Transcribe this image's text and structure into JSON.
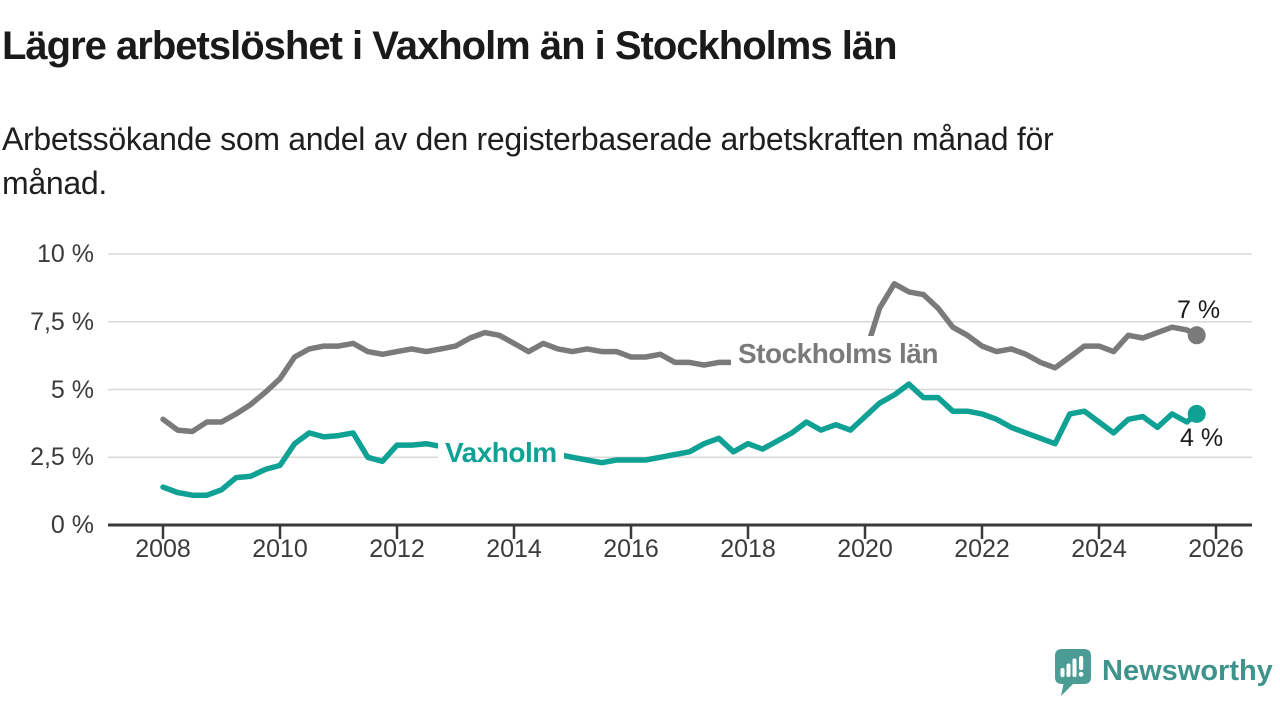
{
  "header": {
    "title": "Lägre arbetslöshet i Vaxholm än i Stockholms län",
    "subtitle_line1": "Arbetssökande som andel av den registerbaserade arbetskraften månad för",
    "subtitle_line2": "månad."
  },
  "chart_data": {
    "type": "line",
    "title": "Lägre arbetslöshet i Vaxholm än i Stockholms län",
    "subtitle": "Arbetssökande som andel av den registerbaserade arbetskraften månad för månad.",
    "xlabel": "",
    "ylabel": "",
    "grid": true,
    "xlim": [
      2007.1,
      2026.6
    ],
    "ylim": [
      0,
      10
    ],
    "x_ticks": [
      2008,
      2010,
      2012,
      2014,
      2016,
      2018,
      2020,
      2022,
      2024,
      2026
    ],
    "y_ticks": [
      {
        "value": 0,
        "label": "0 %"
      },
      {
        "value": 2.5,
        "label": "2,5 %"
      },
      {
        "value": 5,
        "label": "5 %"
      },
      {
        "value": 7.5,
        "label": "7,5 %"
      },
      {
        "value": 10,
        "label": "10 %"
      }
    ],
    "x": [
      2008,
      2008.25,
      2008.5,
      2008.75,
      2009,
      2009.25,
      2009.5,
      2009.75,
      2010,
      2010.25,
      2010.5,
      2010.75,
      2011,
      2011.25,
      2011.5,
      2011.75,
      2012,
      2012.25,
      2012.5,
      2012.75,
      2013,
      2013.25,
      2013.5,
      2013.75,
      2014,
      2014.25,
      2014.5,
      2014.75,
      2015,
      2015.25,
      2015.5,
      2015.75,
      2016,
      2016.25,
      2016.5,
      2016.75,
      2017,
      2017.25,
      2017.5,
      2017.75,
      2018,
      2018.25,
      2018.5,
      2018.75,
      2019,
      2019.25,
      2019.5,
      2019.75,
      2020,
      2020.25,
      2020.5,
      2020.75,
      2021,
      2021.25,
      2021.5,
      2021.75,
      2022,
      2022.25,
      2022.5,
      2022.75,
      2023,
      2023.25,
      2023.5,
      2023.75,
      2024,
      2024.25,
      2024.5,
      2024.75,
      2025,
      2025.25,
      2025.5,
      2025.67
    ],
    "series": [
      {
        "name": "Stockholms län",
        "color": "#7a7a7a",
        "end_label": "7 %",
        "end_value": 7,
        "values": [
          3.9,
          3.5,
          3.45,
          3.8,
          3.8,
          4.1,
          4.45,
          4.9,
          5.4,
          6.2,
          6.5,
          6.6,
          6.6,
          6.7,
          6.4,
          6.3,
          6.4,
          6.5,
          6.4,
          6.5,
          6.6,
          6.9,
          7.1,
          7.0,
          6.7,
          6.4,
          6.7,
          6.5,
          6.4,
          6.5,
          6.4,
          6.4,
          6.2,
          6.2,
          6.3,
          6.0,
          6.0,
          5.9,
          6.0,
          6.0,
          6.1,
          6.0,
          6.1,
          6.0,
          6.0,
          5.9,
          6.0,
          6.1,
          6.3,
          8.0,
          8.9,
          8.6,
          8.5,
          8.0,
          7.3,
          7.0,
          6.6,
          6.4,
          6.5,
          6.3,
          6.0,
          5.8,
          6.2,
          6.6,
          6.6,
          6.4,
          7.0,
          6.9,
          7.1,
          7.3,
          7.2,
          7.0
        ]
      },
      {
        "name": "Vaxholm",
        "color": "#0fa194",
        "end_label": "4 %",
        "end_value": 4,
        "values": [
          1.4,
          1.2,
          1.1,
          1.1,
          1.3,
          1.75,
          1.8,
          2.05,
          2.2,
          3.0,
          3.4,
          3.25,
          3.3,
          3.4,
          2.5,
          2.35,
          2.95,
          2.95,
          3.0,
          2.9,
          2.9,
          2.9,
          2.8,
          2.8,
          2.7,
          2.8,
          2.7,
          2.6,
          2.5,
          2.4,
          2.3,
          2.4,
          2.4,
          2.4,
          2.5,
          2.6,
          2.7,
          3.0,
          3.2,
          2.7,
          3.0,
          2.8,
          3.1,
          3.4,
          3.8,
          3.5,
          3.7,
          3.5,
          4.0,
          4.5,
          4.8,
          5.2,
          4.7,
          4.7,
          4.2,
          4.2,
          4.1,
          3.9,
          3.6,
          3.4,
          3.2,
          3.0,
          4.1,
          4.2,
          3.8,
          3.4,
          3.9,
          4.0,
          3.6,
          4.1,
          3.8,
          4.1
        ]
      }
    ],
    "legend_position": "inline-labels"
  },
  "footer": {
    "brand": "Newsworthy"
  },
  "colors": {
    "stockholm_line": "#7a7a7a",
    "vaxholm_line": "#0fa194",
    "grid": "#d8d8d8",
    "axis": "#3a3a3a",
    "title_text": "#1a1a1a",
    "tick_text": "#3b3b3b",
    "logo_bubble": "#4a9c95",
    "brand_text": "#3e948c"
  }
}
